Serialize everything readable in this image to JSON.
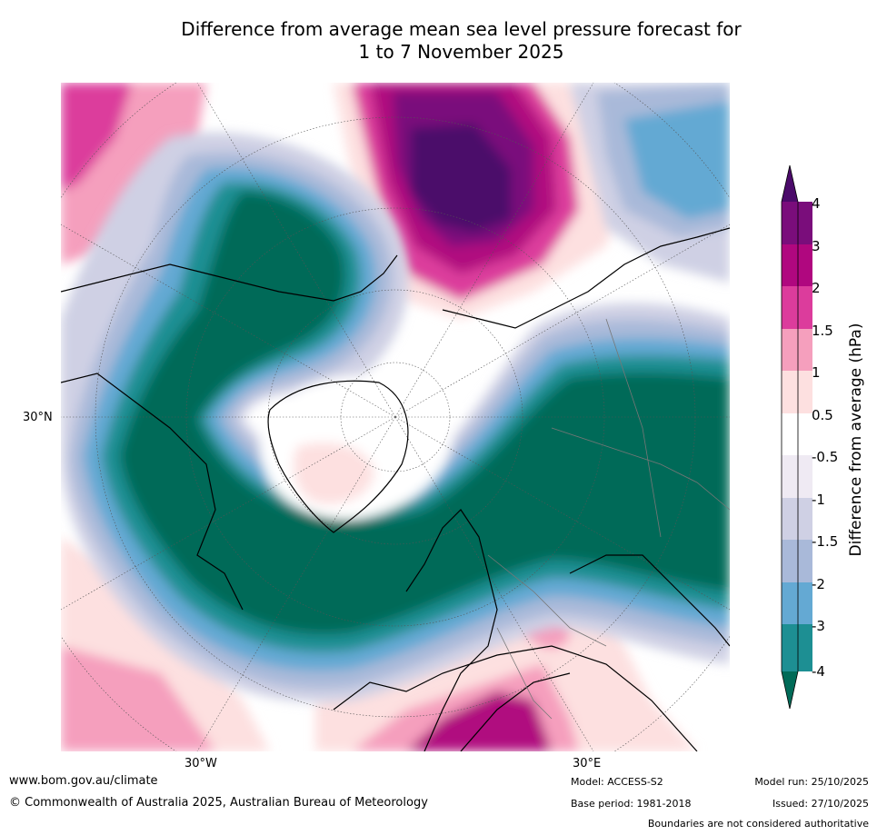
{
  "title": {
    "line1": "Difference from average mean sea level pressure forecast for",
    "line2": "1 to 7 November 2025"
  },
  "map": {
    "projection": "north-polar-stereographic",
    "region": "Northern Hemisphere (Atlantic sector)",
    "axis_labels": {
      "lat_30n": "30°N",
      "lon_30w": "30°W",
      "lon_30e": "30°E"
    },
    "features": [
      "strong-negative-anomaly-north-atlantic-europe",
      "strong-positive-anomaly-east-siberia",
      "weak-positive-anomaly-greenland",
      "positive-anomaly-mediterranean-north-africa"
    ]
  },
  "colorbar": {
    "title": "Difference from average (hPa)",
    "ticks": [
      "4",
      "3",
      "2",
      "1.5",
      "1",
      "0.5",
      "-0.5",
      "-1",
      "-1.5",
      "-2",
      "-3",
      "-4"
    ],
    "colors": {
      "above_4": "#4b0a6a",
      "3_to_4": "#7a0d7b",
      "2_to_3": "#b0077f",
      "1.5_to_2": "#dc3c9c",
      "1_to_1.5": "#f59fbd",
      "0.5_to_1": "#fde0e0",
      "-0.5_to_0.5": "#ffffff",
      "-1_to_-0.5": "#efeaf3",
      "-1.5_to_-1": "#cfd0e4",
      "-2_to_-1.5": "#a9b9d9",
      "-3_to_-2": "#64a9d3",
      "-4_to_-3": "#1d8f93",
      "below_-4": "#006b58"
    }
  },
  "footer": {
    "website": "www.bom.gov.au/climate",
    "copyright": "© Commonwealth of Australia 2025, Australian Bureau of Meteorology",
    "model": "Model: ACCESS-S2",
    "base_period": "Base period: 1981-2018",
    "model_run": "Model run: 25/10/2025",
    "issued": "Issued: 27/10/2025",
    "boundaries": "Boundaries are not considered authoritative"
  }
}
